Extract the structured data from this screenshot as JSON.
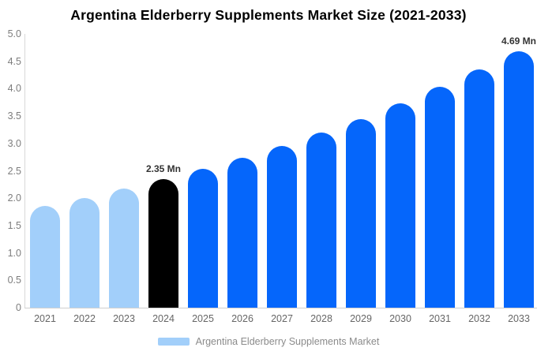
{
  "chart_data": {
    "type": "bar",
    "title": "Argentina Elderberry Supplements Market Size (2021-2033)",
    "unit": "Mn",
    "categories": [
      "2021",
      "2022",
      "2023",
      "2024",
      "2025",
      "2026",
      "2027",
      "2028",
      "2029",
      "2030",
      "2031",
      "2032",
      "2033"
    ],
    "values": [
      1.86,
      2.01,
      2.18,
      2.35,
      2.54,
      2.74,
      2.96,
      3.2,
      3.45,
      3.73,
      4.03,
      4.35,
      4.69
    ],
    "bar_colors": [
      "#A2CFFA",
      "#A2CFFA",
      "#A2CFFA",
      "#000000",
      "#0566FB",
      "#0566FB",
      "#0566FB",
      "#0566FB",
      "#0566FB",
      "#0566FB",
      "#0566FB",
      "#0566FB",
      "#0566FB"
    ],
    "annotations": [
      {
        "category": "2024",
        "text": "2.35 Mn"
      },
      {
        "category": "2033",
        "text": "4.69 Mn"
      }
    ],
    "xlabel": "",
    "ylabel": "",
    "ylim": [
      0,
      5
    ],
    "yticks": [
      "5.0",
      "4.5",
      "4.0",
      "3.5",
      "3.0",
      "2.5",
      "2.0",
      "1.5",
      "1.0",
      "0.5",
      "0"
    ],
    "grid": false,
    "legend": {
      "position": "bottom",
      "items": [
        {
          "label": "Argentina Elderberry Supplements Market",
          "color": "#A2CFFA"
        }
      ]
    }
  },
  "colors": {
    "highlight_bar": "#000000",
    "future_bar": "#0566FB",
    "past_bar": "#A2CFFA",
    "axis_line": "#d9d9d9",
    "tick_text": "#7d7d7d"
  }
}
